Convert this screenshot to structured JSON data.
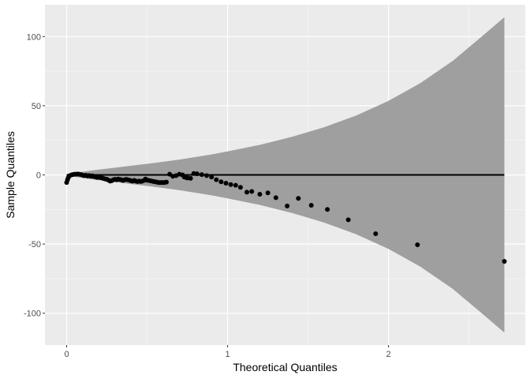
{
  "chart_data": {
    "type": "scatter",
    "title": "",
    "xlabel": "Theoretical Quantiles",
    "ylabel": "Sample Quantiles",
    "xlim": [
      -0.135,
      2.85
    ],
    "ylim": [
      -123,
      123
    ],
    "x_ticks": [
      0,
      1,
      2
    ],
    "y_ticks": [
      -100,
      -50,
      0,
      50,
      100
    ],
    "x_tick_labels": [
      "0",
      "1",
      "2"
    ],
    "y_tick_labels": [
      "-100",
      "-50",
      "0",
      "50",
      "100"
    ],
    "grid": true,
    "legend": "none",
    "reference_line": {
      "y": 0
    },
    "confidence_band": {
      "x": [
        0.0,
        0.1,
        0.2,
        0.3,
        0.4,
        0.5,
        0.6,
        0.7,
        0.8,
        0.9,
        1.0,
        1.2,
        1.4,
        1.6,
        1.8,
        2.0,
        2.2,
        2.4,
        2.6,
        2.72
      ],
      "upper": [
        0.5,
        2.3,
        3.8,
        5.2,
        6.6,
        8.0,
        9.5,
        11.1,
        12.9,
        14.8,
        17.0,
        21.7,
        27.5,
        34.5,
        43.0,
        53.5,
        66.5,
        82.5,
        102.0,
        114.0
      ],
      "lower": [
        -0.5,
        -2.3,
        -3.8,
        -5.2,
        -6.6,
        -8.0,
        -9.5,
        -11.1,
        -12.9,
        -14.8,
        -17.0,
        -21.7,
        -27.5,
        -34.5,
        -43.0,
        -53.5,
        -66.5,
        -82.5,
        -102.0,
        -114.0
      ]
    },
    "points": [
      {
        "x": 0.0,
        "y": -5.5
      },
      {
        "x": 0.005,
        "y": -3.5
      },
      {
        "x": 0.01,
        "y": -2.0
      },
      {
        "x": 0.015,
        "y": -1.0
      },
      {
        "x": 0.02,
        "y": -0.5
      },
      {
        "x": 0.03,
        "y": 0.0
      },
      {
        "x": 0.04,
        "y": 0.3
      },
      {
        "x": 0.05,
        "y": 0.5
      },
      {
        "x": 0.06,
        "y": 0.5
      },
      {
        "x": 0.07,
        "y": 0.6
      },
      {
        "x": 0.08,
        "y": 0.4
      },
      {
        "x": 0.09,
        "y": 0.2
      },
      {
        "x": 0.1,
        "y": -0.2
      },
      {
        "x": 0.11,
        "y": -0.5
      },
      {
        "x": 0.12,
        "y": -0.3
      },
      {
        "x": 0.13,
        "y": -0.8
      },
      {
        "x": 0.14,
        "y": -0.5
      },
      {
        "x": 0.15,
        "y": -1.0
      },
      {
        "x": 0.16,
        "y": -0.6
      },
      {
        "x": 0.17,
        "y": -1.2
      },
      {
        "x": 0.18,
        "y": -1.5
      },
      {
        "x": 0.19,
        "y": -1.8
      },
      {
        "x": 0.2,
        "y": -1.5
      },
      {
        "x": 0.21,
        "y": -2.0
      },
      {
        "x": 0.22,
        "y": -2.2
      },
      {
        "x": 0.23,
        "y": -2.6
      },
      {
        "x": 0.24,
        "y": -3.0
      },
      {
        "x": 0.25,
        "y": -3.2
      },
      {
        "x": 0.26,
        "y": -3.8
      },
      {
        "x": 0.27,
        "y": -4.5
      },
      {
        "x": 0.28,
        "y": -4.2
      },
      {
        "x": 0.29,
        "y": -3.6
      },
      {
        "x": 0.3,
        "y": -3.2
      },
      {
        "x": 0.31,
        "y": -3.5
      },
      {
        "x": 0.32,
        "y": -3.0
      },
      {
        "x": 0.33,
        "y": -3.3
      },
      {
        "x": 0.34,
        "y": -3.6
      },
      {
        "x": 0.35,
        "y": -4.0
      },
      {
        "x": 0.36,
        "y": -3.6
      },
      {
        "x": 0.37,
        "y": -3.2
      },
      {
        "x": 0.38,
        "y": -3.6
      },
      {
        "x": 0.39,
        "y": -3.9
      },
      {
        "x": 0.4,
        "y": -4.2
      },
      {
        "x": 0.41,
        "y": -4.5
      },
      {
        "x": 0.42,
        "y": -4.0
      },
      {
        "x": 0.43,
        "y": -4.5
      },
      {
        "x": 0.44,
        "y": -4.8
      },
      {
        "x": 0.45,
        "y": -4.5
      },
      {
        "x": 0.46,
        "y": -4.8
      },
      {
        "x": 0.47,
        "y": -4.5
      },
      {
        "x": 0.48,
        "y": -4.0
      },
      {
        "x": 0.49,
        "y": -3.0
      },
      {
        "x": 0.5,
        "y": -3.8
      },
      {
        "x": 0.51,
        "y": -4.0
      },
      {
        "x": 0.52,
        "y": -4.3
      },
      {
        "x": 0.53,
        "y": -4.5
      },
      {
        "x": 0.54,
        "y": -4.8
      },
      {
        "x": 0.55,
        "y": -5.0
      },
      {
        "x": 0.56,
        "y": -5.2
      },
      {
        "x": 0.57,
        "y": -5.5
      },
      {
        "x": 0.58,
        "y": -5.6
      },
      {
        "x": 0.59,
        "y": -5.5
      },
      {
        "x": 0.6,
        "y": -5.6
      },
      {
        "x": 0.61,
        "y": -5.4
      },
      {
        "x": 0.62,
        "y": -5.2
      },
      {
        "x": 0.64,
        "y": 0.5
      },
      {
        "x": 0.66,
        "y": -1.0
      },
      {
        "x": 0.68,
        "y": -0.5
      },
      {
        "x": 0.7,
        "y": 0.5
      },
      {
        "x": 0.72,
        "y": 0.0
      },
      {
        "x": 0.73,
        "y": -1.5
      },
      {
        "x": 0.74,
        "y": -1.8
      },
      {
        "x": 0.75,
        "y": -2.2
      },
      {
        "x": 0.77,
        "y": -2.5
      },
      {
        "x": 0.79,
        "y": 1.0
      },
      {
        "x": 0.81,
        "y": 0.8
      },
      {
        "x": 0.84,
        "y": 0.2
      },
      {
        "x": 0.87,
        "y": -0.5
      },
      {
        "x": 0.9,
        "y": -1.5
      },
      {
        "x": 0.93,
        "y": -3.5
      },
      {
        "x": 0.96,
        "y": -5.0
      },
      {
        "x": 0.99,
        "y": -6.0
      },
      {
        "x": 1.02,
        "y": -7.0
      },
      {
        "x": 1.05,
        "y": -7.5
      },
      {
        "x": 1.08,
        "y": -9.0
      },
      {
        "x": 1.12,
        "y": -12.5
      },
      {
        "x": 1.15,
        "y": -12.0
      },
      {
        "x": 1.2,
        "y": -14.0
      },
      {
        "x": 1.25,
        "y": -13.0
      },
      {
        "x": 1.3,
        "y": -16.5
      },
      {
        "x": 1.37,
        "y": -22.5
      },
      {
        "x": 1.44,
        "y": -17.0
      },
      {
        "x": 1.52,
        "y": -22.0
      },
      {
        "x": 1.62,
        "y": -25.0
      },
      {
        "x": 1.75,
        "y": -32.5
      },
      {
        "x": 1.92,
        "y": -42.5
      },
      {
        "x": 2.18,
        "y": -50.5
      },
      {
        "x": 2.72,
        "y": -62.5
      }
    ],
    "colors": {
      "panel": "#ebebeb",
      "grid_major": "#ffffff",
      "band": "#9f9f9f",
      "points": "#000000",
      "reference_line": "#000000"
    }
  }
}
